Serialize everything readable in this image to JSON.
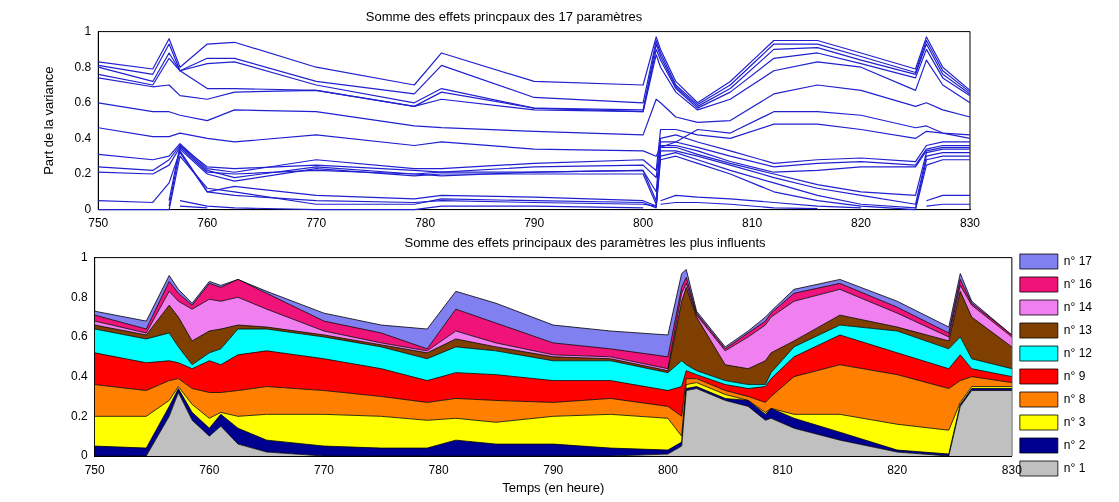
{
  "chart_data": [
    {
      "type": "line",
      "title": "Somme des effets princpaux des 17 paramètres",
      "ylabel": "Part de la variance",
      "x": [
        750,
        755,
        756.5,
        757.5,
        760,
        762.5,
        770,
        779,
        781.5,
        790,
        800,
        801.2,
        801.6,
        803,
        805,
        808,
        812,
        816,
        820,
        825,
        826,
        827.5,
        830
      ],
      "series": [
        {
          "color": "#2020d0",
          "values": [
            0.83,
            0.79,
            0.96,
            0.8,
            0.93,
            0.94,
            0.8,
            0.7,
            0.88,
            0.72,
            0.7,
            0.97,
            0.9,
            0.72,
            0.6,
            0.72,
            0.95,
            0.95,
            0.88,
            0.79,
            0.97,
            0.8,
            0.67
          ]
        },
        {
          "color": "#2020d0",
          "values": [
            0.81,
            0.76,
            0.93,
            0.78,
            0.85,
            0.85,
            0.72,
            0.65,
            0.81,
            0.63,
            0.6,
            0.95,
            0.88,
            0.7,
            0.59,
            0.7,
            0.93,
            0.93,
            0.86,
            0.77,
            0.95,
            0.78,
            0.66
          ]
        },
        {
          "color": "#2020d0",
          "values": [
            0.8,
            0.72,
            0.88,
            0.78,
            0.82,
            0.83,
            0.7,
            0.6,
            0.68,
            0.57,
            0.56,
            0.93,
            0.86,
            0.69,
            0.58,
            0.68,
            0.9,
            0.91,
            0.84,
            0.76,
            0.93,
            0.76,
            0.65
          ]
        },
        {
          "color": "#2020d0",
          "values": [
            0.76,
            0.7,
            0.85,
            0.78,
            0.68,
            0.68,
            0.67,
            0.58,
            0.66,
            0.57,
            0.55,
            0.9,
            0.84,
            0.68,
            0.57,
            0.66,
            0.85,
            0.88,
            0.82,
            0.74,
            0.9,
            0.74,
            0.64
          ]
        },
        {
          "color": "#2020d0",
          "values": [
            0.74,
            0.69,
            0.7,
            0.64,
            0.62,
            0.66,
            0.67,
            0.58,
            0.62,
            0.56,
            0.55,
            0.87,
            0.8,
            0.66,
            0.56,
            0.62,
            0.78,
            0.83,
            0.8,
            0.67,
            0.84,
            0.7,
            0.6
          ]
        },
        {
          "color": "#2020d0",
          "values": [
            0.6,
            0.55,
            0.55,
            0.53,
            0.5,
            0.56,
            0.55,
            0.47,
            0.46,
            0.44,
            0.42,
            0.62,
            0.6,
            0.52,
            0.49,
            0.5,
            0.65,
            0.7,
            0.67,
            0.58,
            0.6,
            0.56,
            0.52
          ]
        },
        {
          "color": "#2020d0",
          "values": [
            0.46,
            0.41,
            0.41,
            0.43,
            0.4,
            0.38,
            0.42,
            0.36,
            0.38,
            0.34,
            0.33,
            0.3,
            0.35,
            0.38,
            0.45,
            0.43,
            0.55,
            0.55,
            0.53,
            0.46,
            0.47,
            0.43,
            0.4
          ]
        },
        {
          "color": "#2020d0",
          "values": [
            0.31,
            0.28,
            0.3,
            0.37,
            0.23,
            0.21,
            0.28,
            0.23,
            0.23,
            0.26,
            0.28,
            0.22,
            0.45,
            0.45,
            0.42,
            0.4,
            0.48,
            0.48,
            0.45,
            0.4,
            0.44,
            0.43,
            0.42
          ]
        },
        {
          "color": "#2020d0",
          "values": [
            0.24,
            0.22,
            0.28,
            0.36,
            0.24,
            0.23,
            0.25,
            0.22,
            0.21,
            0.24,
            0.25,
            0.18,
            0.4,
            0.42,
            0.38,
            0.33,
            0.26,
            0.28,
            0.29,
            0.27,
            0.36,
            0.38,
            0.38
          ]
        },
        {
          "color": "#2020d0",
          "values": [
            0.21,
            0.2,
            0.25,
            0.35,
            0.21,
            0.2,
            0.22,
            0.2,
            0.19,
            0.21,
            0.22,
            0.1,
            0.38,
            0.38,
            0.35,
            0.3,
            0.24,
            0.26,
            0.27,
            0.25,
            0.34,
            0.36,
            0.36
          ]
        },
        {
          "color": "#2020d0",
          "values": [
            0.05,
            0.04,
            0.15,
            0.33,
            0.1,
            0.13,
            0.08,
            0.06,
            0.08,
            0.07,
            0.05,
            0.02,
            0.36,
            0.36,
            0.33,
            0.27,
            0.21,
            0.22,
            0.24,
            0.24,
            0.33,
            0.35,
            0.35
          ]
        },
        {
          "color": "#2020d0",
          "values": [
            null,
            null,
            0.05,
            0.36,
            0.22,
            0.18,
            0.24,
            0.2,
            0.21,
            0.21,
            0.22,
            0.05,
            0.35,
            0.35,
            0.31,
            0.26,
            0.2,
            0.14,
            0.1,
            0.08,
            0.32,
            0.34,
            0.34
          ]
        },
        {
          "color": "#2020d0",
          "values": [
            null,
            null,
            0.02,
            0.34,
            0.2,
            0.16,
            0.23,
            0.19,
            0.2,
            0.2,
            0.2,
            0.03,
            0.33,
            0.33,
            0.3,
            0.25,
            0.18,
            0.12,
            0.08,
            0.03,
            0.3,
            0.32,
            0.32
          ]
        },
        {
          "color": "#2020d0",
          "values": [
            null,
            null,
            null,
            0.32,
            0.1,
            0.08,
            0.05,
            0.04,
            0.05,
            0.04,
            0.03,
            0.02,
            0.3,
            0.32,
            0.28,
            0.22,
            0.15,
            0.08,
            0.03,
            0.01,
            0.28,
            0.3,
            0.3
          ]
        },
        {
          "color": "#2020d0",
          "values": [
            0,
            0,
            0,
            0.3,
            0.12,
            0.1,
            0.03,
            0.03,
            0.06,
            0.05,
            0.04,
            0.01,
            0.28,
            0.3,
            0.26,
            0.2,
            0.1,
            0.05,
            0.02,
            0,
            0.25,
            0.28,
            0.28
          ]
        },
        {
          "color": "#2020d0",
          "values": [
            null,
            null,
            null,
            0.05,
            0.02,
            0.01,
            0,
            0,
            0.02,
            0.02,
            0.01,
            null,
            0.05,
            0.08,
            0.07,
            0.06,
            0.04,
            0.02,
            0.01,
            null,
            0.05,
            0.08,
            0.08
          ]
        },
        {
          "color": "#2020d0",
          "values": [
            null,
            null,
            null,
            0.02,
            0.01,
            null,
            null,
            null,
            null,
            null,
            null,
            null,
            0.03,
            0.04,
            0.04,
            0.03,
            0.01,
            0.005,
            null,
            null,
            0.02,
            0.03,
            0.03
          ]
        }
      ],
      "xlim": [
        750,
        830
      ],
      "ylim": [
        0,
        1
      ],
      "xticks": [
        750,
        760,
        770,
        780,
        790,
        800,
        810,
        820,
        830
      ],
      "yticks": [
        0,
        0.2,
        0.4,
        0.6,
        0.8,
        1
      ]
    },
    {
      "type": "area",
      "stacked": true,
      "title": "Somme des effets principaux des paramètres les plus influents",
      "xlabel": "Temps (en heure)",
      "legend": "right",
      "x": [
        750,
        754.5,
        756.5,
        757.3,
        758.5,
        760,
        761,
        762.5,
        765,
        770,
        775,
        779,
        781.5,
        785,
        790,
        795,
        800,
        801.2,
        801.6,
        802.5,
        805,
        807,
        808.5,
        809,
        811,
        815,
        820,
        824.5,
        825.5,
        826.5,
        830
      ],
      "series": [
        {
          "name": "n° 1",
          "color": "#c0c0c0",
          "values": [
            0,
            0,
            0.2,
            0.32,
            0.18,
            0.1,
            0.15,
            0.06,
            0.02,
            0,
            0,
            0,
            0,
            0,
            0,
            0,
            0.01,
            0.05,
            0.33,
            0.34,
            0.28,
            0.25,
            0.18,
            0.19,
            0.14,
            0.08,
            0.02,
            0,
            0.25,
            0.33,
            0.33
          ]
        },
        {
          "name": "n° 2",
          "color": "#000090",
          "values": [
            0.05,
            0.04,
            0.05,
            0.02,
            0.04,
            0.04,
            0.06,
            0.08,
            0.06,
            0.05,
            0.04,
            0.04,
            0.08,
            0.06,
            0.06,
            0.04,
            0.02,
            0.02,
            0.01,
            0.01,
            0.01,
            0.03,
            0.03,
            0.05,
            0.05,
            0.04,
            0.01,
            0.01,
            0.01,
            0.01,
            0.01
          ]
        },
        {
          "name": "n° 3",
          "color": "#ffff00",
          "values": [
            0.15,
            0.16,
            0.03,
            0.01,
            0.04,
            0.05,
            0.01,
            0.06,
            0.13,
            0.16,
            0.16,
            0.14,
            0.11,
            0.11,
            0.14,
            0.17,
            0.16,
            0.03,
            0.02,
            0.02,
            0.02,
            0,
            0.01,
            0,
            0.02,
            0.09,
            0.13,
            0.12,
            0.01,
            0.01,
            0.01
          ]
        },
        {
          "name": "n° 8",
          "color": "#ff8000",
          "values": [
            0.16,
            0.13,
            0.1,
            0.04,
            0.08,
            0.13,
            0.1,
            0.13,
            0.14,
            0.12,
            0.1,
            0.09,
            0.1,
            0.11,
            0.07,
            0.08,
            0.06,
            0.1,
            0.03,
            0.02,
            0.02,
            0.02,
            0.05,
            0.06,
            0.19,
            0.25,
            0.25,
            0.21,
            0.11,
            0.05,
            0.02
          ]
        },
        {
          "name": "n° 9",
          "color": "#ff0000",
          "values": [
            0.16,
            0.14,
            0.1,
            0.08,
            0.1,
            0.16,
            0.14,
            0.18,
            0.18,
            0.16,
            0.14,
            0.11,
            0.13,
            0.13,
            0.11,
            0.09,
            0.08,
            0.15,
            0.04,
            0.02,
            0.03,
            0.04,
            0.08,
            0.09,
            0.1,
            0.15,
            0.11,
            0.1,
            0.13,
            0.04,
            0.03
          ]
        },
        {
          "name": "n° 12",
          "color": "#00ffff",
          "values": [
            0.12,
            0.12,
            0.14,
            0.08,
            0.02,
            0.04,
            0.08,
            0.13,
            0.11,
            0.11,
            0.11,
            0.11,
            0.13,
            0.12,
            0.1,
            0.1,
            0.09,
            0.13,
            0.03,
            0.02,
            0.02,
            0.02,
            0.01,
            0.03,
            0.05,
            0.05,
            0.11,
            0.1,
            0.09,
            0.05,
            0.04
          ]
        },
        {
          "name": "n° 13",
          "color": "#7f3f00",
          "values": [
            0.02,
            0.02,
            0.14,
            0.15,
            0.12,
            0.11,
            0.1,
            0.02,
            0.01,
            0.01,
            0.01,
            0.03,
            0.04,
            0.02,
            0.02,
            0.01,
            0.01,
            0.3,
            0.39,
            0.27,
            0.08,
            0.08,
            0.12,
            0.1,
            0.03,
            0.05,
            0.02,
            0.04,
            0.23,
            0.21,
            0.11
          ]
        },
        {
          "name": "n° 14",
          "color": "#f080f0",
          "values": [
            0.02,
            0.01,
            0.07,
            0.08,
            0.16,
            0.16,
            0.14,
            0.14,
            0.09,
            0.02,
            0.01,
            0.01,
            0.04,
            0.02,
            0.01,
            0.01,
            0.01,
            0.04,
            0.02,
            0.01,
            0.07,
            0.16,
            0.18,
            0.18,
            0.2,
            0.13,
            0.07,
            0.02,
            0.03,
            0.06,
            0.05
          ]
        },
        {
          "name": "n° 16",
          "color": "#f0147a",
          "values": [
            0.03,
            0.02,
            0.05,
            0.04,
            0.02,
            0.08,
            0.07,
            0.09,
            0.08,
            0.05,
            0.05,
            0.01,
            0.11,
            0.1,
            0.06,
            0.04,
            0.06,
            0.03,
            0.03,
            0.01,
            0.01,
            0.02,
            0.02,
            0.02,
            0.04,
            0.03,
            0.03,
            0.02,
            0.03,
            0.01,
            0.01
          ]
        },
        {
          "name": "n° 17",
          "color": "#8080f0",
          "values": [
            0.02,
            0.04,
            0.03,
            0.02,
            0.01,
            0.01,
            0.01,
            0,
            0.01,
            0.04,
            0.04,
            0.1,
            0.09,
            0.1,
            0.09,
            0.09,
            0.11,
            0.07,
            0.04,
            0.01,
            0.01,
            0.01,
            0.02,
            0.01,
            0.02,
            0.02,
            0.03,
            0.03,
            0.03,
            0.01,
            0
          ]
        }
      ],
      "xlim": [
        750,
        830
      ],
      "ylim": [
        0,
        1
      ],
      "xticks": [
        750,
        760,
        770,
        780,
        790,
        800,
        810,
        820,
        830
      ],
      "yticks": [
        0,
        0.2,
        0.4,
        0.6,
        0.8,
        1
      ]
    }
  ]
}
